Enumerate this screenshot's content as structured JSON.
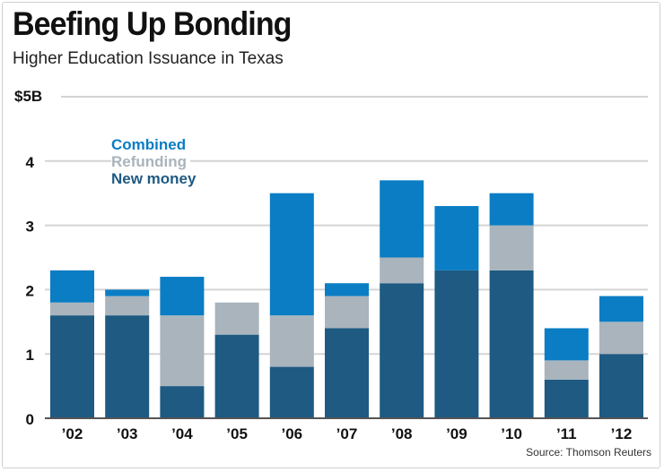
{
  "chart_data": {
    "type": "bar",
    "stacked": true,
    "title": "Beefing Up Bonding",
    "subtitle": "Higher Education Issuance in Texas",
    "xlabel": "",
    "ylabel": "",
    "unit_label": "$5B",
    "ylim": [
      0,
      5
    ],
    "yticks": [
      "0",
      "1",
      "2",
      "3",
      "4"
    ],
    "grid": true,
    "legend_position": "top-left",
    "categories": [
      "’02",
      "’03",
      "’04",
      "’05",
      "’06",
      "’07",
      "’08",
      "’09",
      "’10",
      "’11",
      "’12"
    ],
    "series": [
      {
        "name": "New money",
        "color": "#1e5a82",
        "values": [
          1.6,
          1.6,
          0.5,
          1.3,
          0.8,
          1.4,
          2.1,
          2.3,
          2.3,
          0.6,
          1.0
        ]
      },
      {
        "name": "Refunding",
        "color": "#a9b4bd",
        "values": [
          0.2,
          0.3,
          1.1,
          0.5,
          0.8,
          0.5,
          0.4,
          0.0,
          0.7,
          0.3,
          0.5
        ]
      },
      {
        "name": "Combined",
        "color": "#0a7dc4",
        "values": [
          0.5,
          0.1,
          0.6,
          0.0,
          1.9,
          0.2,
          1.2,
          1.0,
          0.5,
          0.5,
          0.4
        ]
      }
    ],
    "source": "Source: Thomson Reuters"
  }
}
